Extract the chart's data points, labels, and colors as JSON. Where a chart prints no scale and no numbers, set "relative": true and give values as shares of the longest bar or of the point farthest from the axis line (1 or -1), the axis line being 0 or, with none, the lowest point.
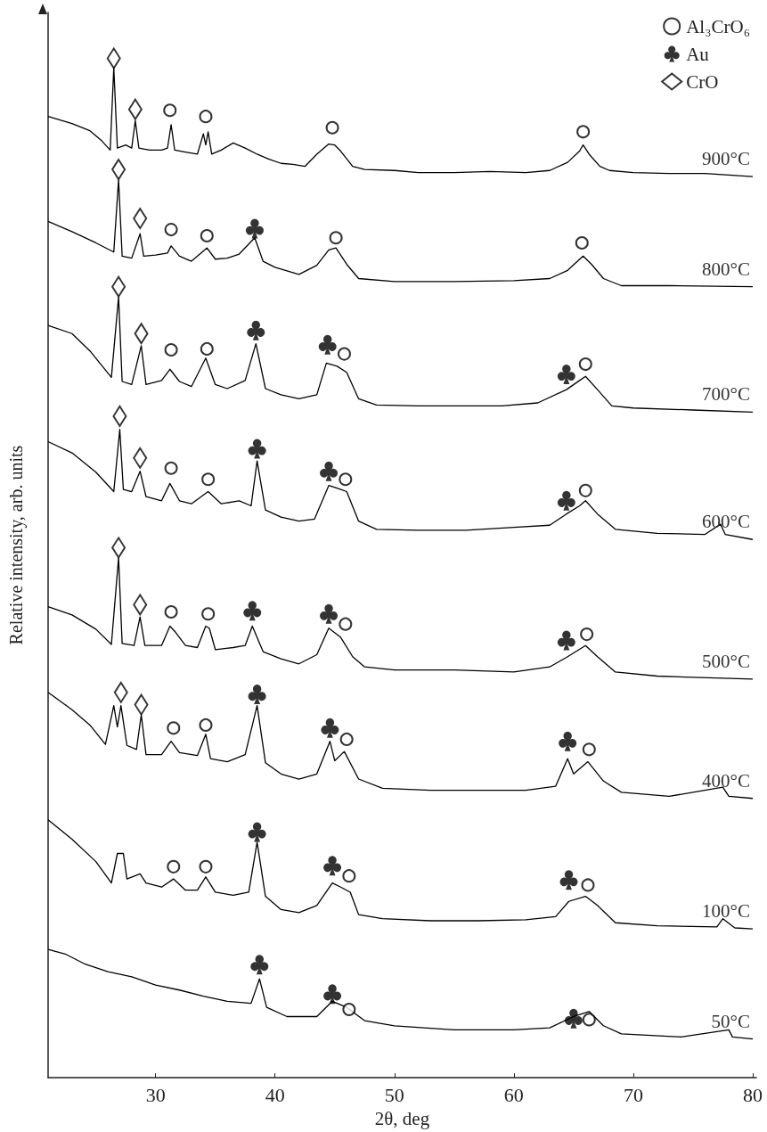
{
  "chart_data": {
    "type": "line",
    "relative": true,
    "xlabel": "2θ, deg",
    "ylabel": "Relative intensity, arb. units",
    "xlim": [
      21,
      80.3
    ],
    "xticks": [
      30,
      40,
      50,
      60,
      70,
      80
    ],
    "legend": "top right",
    "grid": false,
    "series": [
      {
        "name": "900°C",
        "color": "#000000",
        "x": [
          21,
          23,
          24.5,
          25.5,
          26.2,
          26.5,
          26.8,
          27.5,
          28,
          28.3,
          28.6,
          29.5,
          30.5,
          31,
          31.3,
          31.6,
          32.5,
          33.5,
          34,
          34.2,
          34.4,
          34.7,
          35.5,
          36.5,
          37.5,
          38.5,
          39.5,
          40.5,
          41.5,
          42.5,
          43.5,
          44.5,
          45,
          45.5,
          46.5,
          47.5,
          50,
          52,
          55,
          58,
          61,
          63,
          64.5,
          65.5,
          65.8,
          66.3,
          67.2,
          68,
          70,
          73,
          76,
          80
        ],
        "values": [
          0.943,
          0.936,
          0.929,
          0.919,
          0.91,
          0.991,
          0.912,
          0.915,
          0.912,
          0.939,
          0.912,
          0.91,
          0.91,
          0.912,
          0.935,
          0.91,
          0.908,
          0.906,
          0.926,
          0.915,
          0.928,
          0.906,
          0.91,
          0.917,
          0.912,
          0.906,
          0.901,
          0.897,
          0.896,
          0.894,
          0.906,
          0.916,
          0.915,
          0.909,
          0.894,
          0.891,
          0.89,
          0.888,
          0.888,
          0.889,
          0.888,
          0.89,
          0.898,
          0.909,
          0.915,
          0.906,
          0.894,
          0.89,
          0.888,
          0.887,
          0.887,
          0.884
        ]
      },
      {
        "name": "800°C",
        "color": "#000000",
        "x": [
          21,
          23,
          25,
          26.5,
          26.9,
          27.2,
          28,
          28.7,
          29,
          30,
          31,
          31.3,
          32,
          33,
          34.3,
          35,
          36,
          37,
          38.3,
          39,
          40,
          42,
          43.5,
          44.5,
          45.1,
          46,
          47,
          50,
          55,
          60,
          63,
          64.5,
          65.8,
          66.5,
          67.5,
          69,
          73,
          80
        ],
        "values": [
          0.84,
          0.83,
          0.819,
          0.81,
          0.881,
          0.806,
          0.804,
          0.828,
          0.806,
          0.807,
          0.809,
          0.816,
          0.806,
          0.801,
          0.814,
          0.803,
          0.804,
          0.808,
          0.824,
          0.801,
          0.795,
          0.788,
          0.797,
          0.812,
          0.814,
          0.798,
          0.784,
          0.781,
          0.781,
          0.782,
          0.784,
          0.792,
          0.806,
          0.798,
          0.784,
          0.777,
          0.777,
          0.776
        ]
      },
      {
        "name": "700°C",
        "color": "#000000",
        "x": [
          21,
          23,
          24.5,
          26.3,
          26.9,
          27.2,
          28,
          28.8,
          29.2,
          30.5,
          31.2,
          32,
          33,
          34.2,
          35,
          36,
          37.5,
          38.4,
          39.2,
          40.5,
          42,
          43.5,
          44.3,
          45.2,
          46,
          47,
          48.5,
          52,
          55,
          59,
          62,
          64.4,
          65.5,
          66,
          67,
          68.2,
          70,
          75,
          80
        ],
        "values": [
          0.738,
          0.73,
          0.713,
          0.687,
          0.766,
          0.683,
          0.68,
          0.718,
          0.68,
          0.684,
          0.695,
          0.683,
          0.678,
          0.706,
          0.68,
          0.676,
          0.684,
          0.72,
          0.676,
          0.67,
          0.666,
          0.67,
          0.701,
          0.698,
          0.692,
          0.666,
          0.66,
          0.659,
          0.659,
          0.659,
          0.662,
          0.675,
          0.684,
          0.688,
          0.675,
          0.659,
          0.657,
          0.655,
          0.653
        ]
      },
      {
        "name": "600°C",
        "color": "#000000",
        "x": [
          21,
          23,
          25,
          26.5,
          27,
          27.3,
          28,
          28.7,
          29.2,
          30.5,
          31.2,
          32,
          33,
          34.4,
          35.5,
          37,
          38,
          38.5,
          39.2,
          40.5,
          42,
          43.3,
          44.5,
          45.3,
          46,
          47,
          48.5,
          52,
          56,
          60,
          63,
          64.4,
          65.5,
          66,
          67,
          68.5,
          72,
          76,
          77.3,
          77.7,
          80
        ],
        "values": [
          0.624,
          0.613,
          0.594,
          0.575,
          0.636,
          0.577,
          0.575,
          0.595,
          0.57,
          0.566,
          0.583,
          0.566,
          0.563,
          0.575,
          0.563,
          0.566,
          0.561,
          0.605,
          0.557,
          0.55,
          0.546,
          0.548,
          0.581,
          0.578,
          0.575,
          0.546,
          0.538,
          0.537,
          0.537,
          0.54,
          0.542,
          0.553,
          0.561,
          0.566,
          0.553,
          0.538,
          0.534,
          0.533,
          0.543,
          0.533,
          0.528
        ]
      },
      {
        "name": "500°C",
        "color": "#000000",
        "x": [
          21,
          23,
          25,
          26.3,
          26.9,
          27.2,
          28.2,
          28.7,
          29.1,
          30.5,
          31.2,
          31.6,
          32.5,
          33.5,
          34.2,
          34.5,
          35,
          36.5,
          37.5,
          38.1,
          39,
          40.5,
          42,
          43.5,
          44.5,
          45.5,
          46.5,
          47.5,
          50,
          55,
          60,
          63,
          64.5,
          66,
          67,
          68.5,
          72,
          80
        ],
        "values": [
          0.462,
          0.454,
          0.44,
          0.425,
          0.51,
          0.426,
          0.424,
          0.452,
          0.424,
          0.424,
          0.443,
          0.438,
          0.424,
          0.422,
          0.443,
          0.441,
          0.42,
          0.422,
          0.424,
          0.443,
          0.418,
          0.411,
          0.406,
          0.415,
          0.441,
          0.432,
          0.413,
          0.403,
          0.4,
          0.4,
          0.398,
          0.403,
          0.413,
          0.424,
          0.413,
          0.398,
          0.394,
          0.391
        ]
      },
      {
        "name": "400°C",
        "color": "#000000",
        "x": [
          21,
          23,
          24.5,
          25.8,
          26.5,
          26.8,
          27.1,
          27.6,
          28.4,
          28.8,
          29.2,
          30.5,
          31.3,
          32,
          33.5,
          34.2,
          34.6,
          36,
          37.5,
          38.5,
          39.2,
          40.5,
          42,
          43.5,
          44.6,
          45,
          45.8,
          47,
          49,
          53,
          57,
          61,
          63.5,
          64.5,
          65,
          66.2,
          67.5,
          69,
          73,
          77.5,
          78,
          80
        ],
        "values": [
          0.378,
          0.361,
          0.346,
          0.327,
          0.365,
          0.344,
          0.365,
          0.326,
          0.322,
          0.356,
          0.317,
          0.317,
          0.33,
          0.319,
          0.316,
          0.337,
          0.313,
          0.31,
          0.317,
          0.365,
          0.309,
          0.298,
          0.293,
          0.298,
          0.33,
          0.311,
          0.32,
          0.293,
          0.284,
          0.282,
          0.282,
          0.282,
          0.286,
          0.313,
          0.298,
          0.31,
          0.291,
          0.28,
          0.276,
          0.285,
          0.276,
          0.274
        ]
      },
      {
        "name": "100°C",
        "color": "#000000",
        "x": [
          21,
          23,
          25,
          26.3,
          26.8,
          27.3,
          27.6,
          28.7,
          29.2,
          30.5,
          31.5,
          32.5,
          33.5,
          34.2,
          35,
          36.5,
          37.8,
          38.5,
          39.2,
          40.5,
          42,
          43.5,
          44.8,
          45.5,
          46.3,
          47,
          49,
          53,
          57,
          61,
          63.5,
          64.6,
          66,
          67,
          68.5,
          72,
          77,
          77.5,
          78.5,
          80
        ],
        "values": [
          0.253,
          0.234,
          0.212,
          0.191,
          0.22,
          0.22,
          0.195,
          0.2,
          0.191,
          0.187,
          0.195,
          0.184,
          0.184,
          0.197,
          0.182,
          0.179,
          0.182,
          0.231,
          0.178,
          0.165,
          0.162,
          0.169,
          0.191,
          0.187,
          0.182,
          0.16,
          0.156,
          0.154,
          0.154,
          0.155,
          0.158,
          0.173,
          0.178,
          0.169,
          0.152,
          0.149,
          0.148,
          0.156,
          0.147,
          0.146
        ]
      },
      {
        "name": "50°C",
        "color": "#000000",
        "x": [
          21,
          22.5,
          24,
          26,
          28,
          30,
          32,
          34,
          36,
          38,
          38.7,
          39.3,
          41,
          43.5,
          44.8,
          46,
          47.5,
          50,
          55,
          60,
          63,
          65,
          66.3,
          67.5,
          69,
          74,
          78,
          78.3,
          80
        ],
        "values": [
          0.126,
          0.121,
          0.112,
          0.104,
          0.099,
          0.091,
          0.086,
          0.08,
          0.075,
          0.073,
          0.097,
          0.069,
          0.06,
          0.06,
          0.075,
          0.069,
          0.056,
          0.051,
          0.047,
          0.047,
          0.049,
          0.06,
          0.065,
          0.051,
          0.043,
          0.04,
          0.047,
          0.04,
          0.038
        ]
      },
      {
        "name": "Al₃CrO₆",
        "type": "scatter",
        "marker": "circle",
        "color": "#000000",
        "x": [
          31.2,
          34.2,
          44.8,
          65.8,
          31.3,
          34.3,
          45.1,
          65.7,
          31.3,
          34.3,
          45.8,
          66,
          31.3,
          34.4,
          45.9,
          66,
          31.3,
          34.4,
          45.9,
          66.1,
          31.5,
          34.2,
          46,
          66.3,
          31.5,
          34.2,
          46.2,
          66.2,
          46.2,
          66.3
        ],
        "values": [
          0.949,
          0.943,
          0.932,
          0.928,
          0.832,
          0.826,
          0.824,
          0.819,
          0.714,
          0.715,
          0.71,
          0.7,
          0.598,
          0.587,
          0.587,
          0.576,
          0.457,
          0.455,
          0.445,
          0.435,
          0.343,
          0.346,
          0.332,
          0.322,
          0.207,
          0.207,
          0.198,
          0.189,
          0.067,
          0.057
        ]
      },
      {
        "name": "Au",
        "type": "scatter",
        "color": "#000000",
        "x": [
          38.3,
          38.4,
          44.4,
          64.4,
          38.5,
          44.5,
          64.4,
          38.1,
          44.5,
          64.4,
          38.5,
          44.6,
          64.5,
          38.5,
          44.8,
          64.6,
          38.7,
          44.8,
          65
        ],
        "values": [
          0.833,
          0.733,
          0.719,
          0.69,
          0.617,
          0.595,
          0.566,
          0.458,
          0.455,
          0.429,
          0.376,
          0.343,
          0.33,
          0.241,
          0.208,
          0.194,
          0.111,
          0.082,
          0.058
        ]
      },
      {
        "name": "CrO",
        "type": "scatter",
        "marker": "diamond",
        "color": "#000000",
        "x": [
          26.5,
          28.3,
          26.9,
          28.7,
          26.9,
          28.8,
          27,
          28.7,
          26.9,
          28.7,
          27.1,
          28.8
        ],
        "values": [
          1,
          0.95,
          0.891,
          0.843,
          0.776,
          0.73,
          0.649,
          0.608,
          0.52,
          0.464,
          0.378,
          0.366
        ]
      }
    ]
  }
}
